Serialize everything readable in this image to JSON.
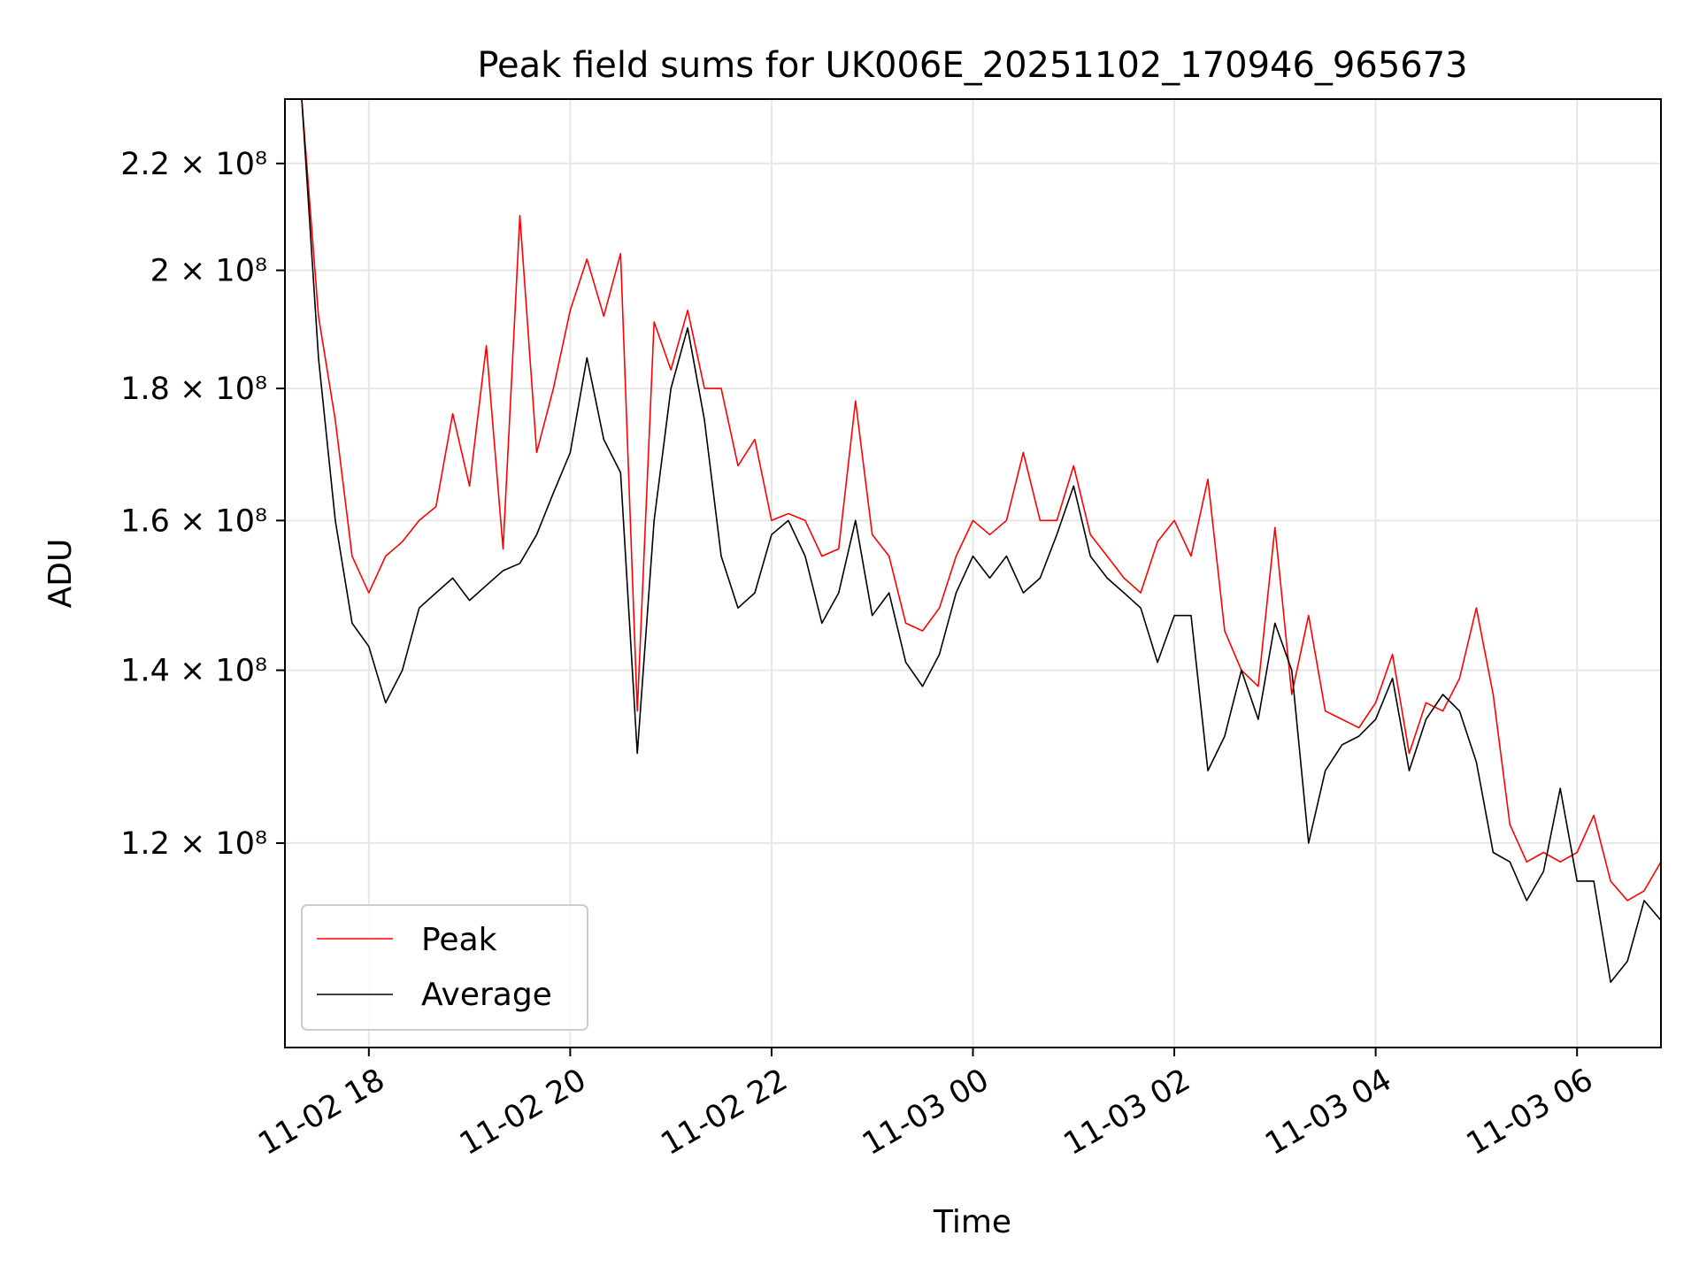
{
  "chart_data": {
    "type": "line",
    "title": "Peak field sums for UK006E_20251102_170946_965673",
    "xlabel": "Time",
    "ylabel": "ADU",
    "x_ticks": [
      "11-02 18",
      "11-02 20",
      "11-02 22",
      "11-03 00",
      "11-03 02",
      "11-03 04",
      "11-03 06"
    ],
    "y_ticks": [
      {
        "value": 120000000,
        "label": "1.2 × 10⁸"
      },
      {
        "value": 140000000,
        "label": "1.4 × 10⁸"
      },
      {
        "value": 160000000,
        "label": "1.6 × 10⁸"
      },
      {
        "value": 180000000,
        "label": "1.8 × 10⁸"
      },
      {
        "value": 200000000,
        "label": "2 × 10⁸"
      },
      {
        "value": 220000000,
        "label": "2.2 × 10⁸"
      }
    ],
    "y_scale": "log",
    "ylim": [
      100000000,
      233000000
    ],
    "xlim": [
      "2025-11-02 17:10",
      "2025-11-03 06:50"
    ],
    "grid": true,
    "legend_position": "lower-left",
    "colors": {
      "peak": "#ff0000",
      "average": "#000000"
    },
    "x": [
      "2025-11-02 17:10",
      "2025-11-02 17:20",
      "2025-11-02 17:30",
      "2025-11-02 17:40",
      "2025-11-02 17:50",
      "2025-11-02 18:00",
      "2025-11-02 18:10",
      "2025-11-02 18:20",
      "2025-11-02 18:30",
      "2025-11-02 18:40",
      "2025-11-02 18:50",
      "2025-11-02 19:00",
      "2025-11-02 19:10",
      "2025-11-02 19:20",
      "2025-11-02 19:30",
      "2025-11-02 19:40",
      "2025-11-02 19:50",
      "2025-11-02 20:00",
      "2025-11-02 20:10",
      "2025-11-02 20:20",
      "2025-11-02 20:30",
      "2025-11-02 20:40",
      "2025-11-02 20:50",
      "2025-11-02 21:00",
      "2025-11-02 21:10",
      "2025-11-02 21:20",
      "2025-11-02 21:30",
      "2025-11-02 21:40",
      "2025-11-02 21:50",
      "2025-11-02 22:00",
      "2025-11-02 22:10",
      "2025-11-02 22:20",
      "2025-11-02 22:30",
      "2025-11-02 22:40",
      "2025-11-02 22:50",
      "2025-11-02 23:00",
      "2025-11-02 23:10",
      "2025-11-02 23:20",
      "2025-11-02 23:30",
      "2025-11-02 23:40",
      "2025-11-02 23:50",
      "2025-11-03 00:00",
      "2025-11-03 00:10",
      "2025-11-03 00:20",
      "2025-11-03 00:30",
      "2025-11-03 00:40",
      "2025-11-03 00:50",
      "2025-11-03 01:00",
      "2025-11-03 01:10",
      "2025-11-03 01:20",
      "2025-11-03 01:30",
      "2025-11-03 01:40",
      "2025-11-03 01:50",
      "2025-11-03 02:00",
      "2025-11-03 02:10",
      "2025-11-03 02:20",
      "2025-11-03 02:30",
      "2025-11-03 02:40",
      "2025-11-03 02:50",
      "2025-11-03 03:00",
      "2025-11-03 03:10",
      "2025-11-03 03:20",
      "2025-11-03 03:30",
      "2025-11-03 03:40",
      "2025-11-03 03:50",
      "2025-11-03 04:00",
      "2025-11-03 04:10",
      "2025-11-03 04:20",
      "2025-11-03 04:30",
      "2025-11-03 04:40",
      "2025-11-03 04:50",
      "2025-11-03 05:00",
      "2025-11-03 05:10",
      "2025-11-03 05:20",
      "2025-11-03 05:30",
      "2025-11-03 05:40",
      "2025-11-03 05:50",
      "2025-11-03 06:00",
      "2025-11-03 06:10",
      "2025-11-03 06:20",
      "2025-11-03 06:30",
      "2025-11-03 06:40",
      "2025-11-03 06:50"
    ],
    "series": [
      {
        "name": "Average",
        "values": [
          233000000,
          233000000,
          185000000,
          160000000,
          146000000,
          143000000,
          136000000,
          140000000,
          148000000,
          150000000,
          152000000,
          149000000,
          151000000,
          153000000,
          154000000,
          158000000,
          164000000,
          170000000,
          185000000,
          172000000,
          167000000,
          130000000,
          160000000,
          180000000,
          190000000,
          175000000,
          155000000,
          148000000,
          150000000,
          158000000,
          160000000,
          155000000,
          146000000,
          150000000,
          160000000,
          147000000,
          150000000,
          141000000,
          138000000,
          142000000,
          150000000,
          155000000,
          152000000,
          155000000,
          150000000,
          152000000,
          158000000,
          165000000,
          155000000,
          152000000,
          150000000,
          148000000,
          141000000,
          147000000,
          147000000,
          128000000,
          132000000,
          140000000,
          134000000,
          146000000,
          140000000,
          120000000,
          128000000,
          131000000,
          132000000,
          134000000,
          139000000,
          128000000,
          134000000,
          137000000,
          135000000,
          129000000,
          119000000,
          118000000,
          114000000,
          117000000,
          126000000,
          116000000,
          116000000,
          106000000,
          108000000,
          114000000,
          112000000
        ]
      },
      {
        "name": "Peak",
        "values": [
          233000000,
          233000000,
          192000000,
          175000000,
          155000000,
          150000000,
          155000000,
          157000000,
          160000000,
          162000000,
          176000000,
          165000000,
          187000000,
          156000000,
          210000000,
          170000000,
          180000000,
          193000000,
          202000000,
          192000000,
          203000000,
          135000000,
          191000000,
          183000000,
          193000000,
          180000000,
          180000000,
          168000000,
          172000000,
          160000000,
          161000000,
          160000000,
          155000000,
          156000000,
          178000000,
          158000000,
          155000000,
          146000000,
          145000000,
          148000000,
          155000000,
          160000000,
          158000000,
          160000000,
          170000000,
          160000000,
          160000000,
          168000000,
          158000000,
          155000000,
          152000000,
          150000000,
          157000000,
          160000000,
          155000000,
          166000000,
          145000000,
          140000000,
          138000000,
          159000000,
          137000000,
          147000000,
          135000000,
          134000000,
          133000000,
          136000000,
          142000000,
          130000000,
          136000000,
          135000000,
          139000000,
          148000000,
          137000000,
          122000000,
          118000000,
          119000000,
          118000000,
          119000000,
          123000000,
          116000000,
          114000000,
          115000000,
          118000000
        ]
      }
    ]
  }
}
